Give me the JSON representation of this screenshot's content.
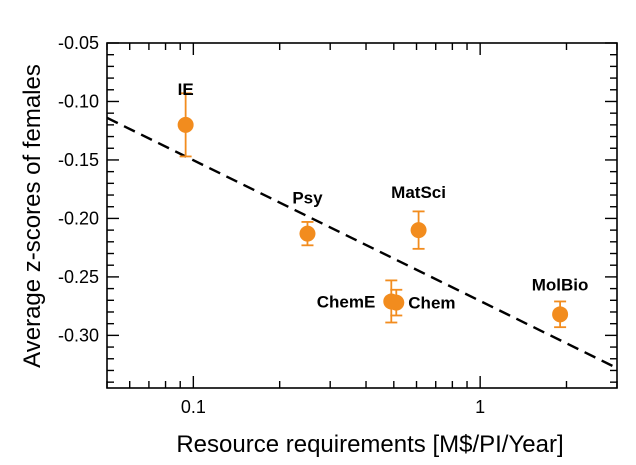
{
  "chart_data": {
    "type": "scatter",
    "title": "",
    "xlabel": "Resource requirements [M$/PI/Year]",
    "ylabel": "Average z-scores of females",
    "x_scale": "log",
    "xlim": [
      0.05,
      3.0
    ],
    "ylim": [
      -0.345,
      -0.05
    ],
    "x_ticks": [
      0.1,
      1
    ],
    "x_tick_labels": [
      "0.1",
      "1"
    ],
    "y_ticks": [
      -0.3,
      -0.25,
      -0.2,
      -0.15,
      -0.1,
      -0.05
    ],
    "y_tick_labels": [
      "-0.30",
      "-0.25",
      "-0.20",
      "-0.15",
      "-0.10",
      "-0.05"
    ],
    "grid": false,
    "marker_color": "#f28c1e",
    "fit_line_color": "#000000",
    "points": [
      {
        "label": "IE",
        "x": 0.094,
        "y": -0.12,
        "y_err": 0.027
      },
      {
        "label": "Psy",
        "x": 0.25,
        "y": -0.213,
        "y_err": 0.01
      },
      {
        "label": "MatSci",
        "x": 0.61,
        "y": -0.21,
        "y_err": 0.016
      },
      {
        "label": "ChemE",
        "x": 0.49,
        "y": -0.271,
        "y_err": 0.018
      },
      {
        "label": "Chem",
        "x": 0.51,
        "y": -0.272,
        "y_err": 0.011
      },
      {
        "label": "MolBio",
        "x": 1.9,
        "y": -0.282,
        "y_err": 0.011
      }
    ],
    "fit_line": {
      "style": "dashed",
      "x": [
        0.05,
        3.0
      ],
      "y": [
        -0.114,
        -0.328
      ]
    }
  }
}
